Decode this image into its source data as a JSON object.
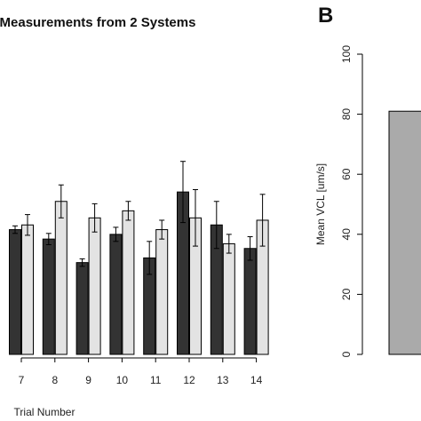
{
  "chart_data": [
    {
      "type": "bar",
      "title": "Measurements from 2 Systems",
      "xlabel": "Trial Number",
      "ylabel": "",
      "categories": [
        "7",
        "8",
        "9",
        "10",
        "11",
        "12",
        "13",
        "14"
      ],
      "series": [
        {
          "name": "",
          "color": "#333333",
          "values": [
            76.5,
            74.5,
            69.5,
            75.5,
            70.5,
            84.5,
            77.5,
            72.5
          ],
          "errors": [
            0.8,
            1.2,
            0.8,
            1.5,
            3.5,
            6.5,
            5.0,
            2.5
          ]
        },
        {
          "name": "",
          "color": "#e3e3e3",
          "values": [
            77.5,
            82.5,
            79.0,
            80.5,
            76.5,
            79.0,
            73.5,
            78.5
          ],
          "errors": [
            2.2,
            3.5,
            3.0,
            2.0,
            2.0,
            6.0,
            2.0,
            5.5
          ]
        }
      ],
      "error_bars": true,
      "grid": false,
      "legend": "none"
    },
    {
      "type": "bar",
      "panel_label": "B",
      "title": "",
      "ylabel": "Mean VCL [um/s]",
      "xlabel": "",
      "yticks": [
        0,
        20,
        40,
        60,
        80,
        100
      ],
      "ylim": [
        0,
        100
      ],
      "categories": [
        ""
      ],
      "series": [
        {
          "name": "",
          "color": "#aaaaaa",
          "values": [
            81
          ]
        }
      ],
      "grid": false,
      "legend": "none"
    }
  ]
}
